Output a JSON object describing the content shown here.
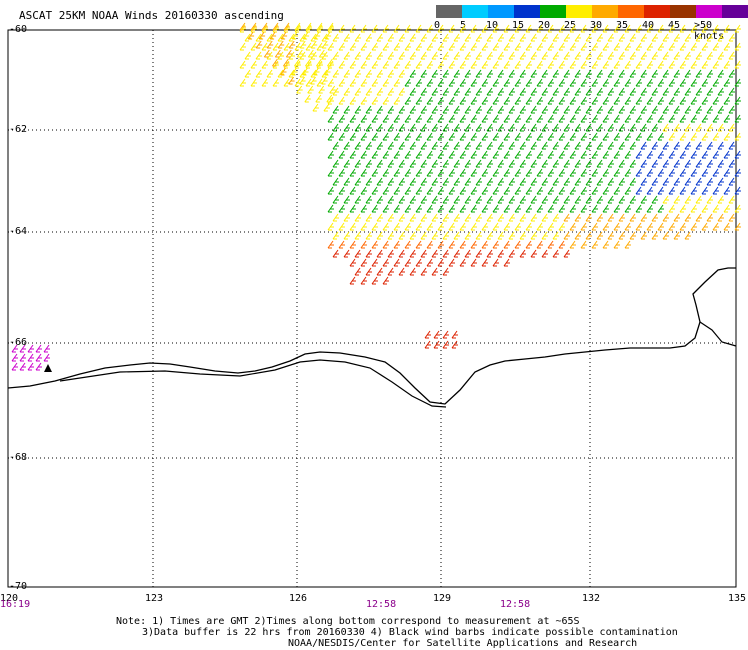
{
  "header": {
    "title": "ASCAT 25KM NOAA Winds 20160330 ascending"
  },
  "legend": {
    "colors": [
      "#666666",
      "#00ccff",
      "#0099ff",
      "#0033cc",
      "#00aa00",
      "#ffee00",
      "#ffaa00",
      "#ff6600",
      "#dd2200",
      "#993300",
      "#cc00cc",
      "#660099"
    ],
    "labels": [
      "0",
      "5",
      "10",
      "15",
      "20",
      "25",
      "30",
      "35",
      "40",
      "45",
      ">50 knots"
    ]
  },
  "axes": {
    "lat_labels": [
      "-60",
      "-62",
      "-64",
      "-66",
      "-68",
      "-70"
    ],
    "lon_labels": [
      "120",
      "123",
      "126",
      "129",
      "132",
      "135"
    ]
  },
  "times": [
    "16:19",
    "12:58",
    "12:58"
  ],
  "notes": {
    "line1": "Note: 1) Times are GMT 2)Times along bottom correspond to measurement at ~65S",
    "line2": "3)Data buffer is 22 hrs from 20160330 4) Black wind barbs indicate possible contamination",
    "line3": "NOAA/NESDIS/Center for Satellite Applications and Research"
  }
}
